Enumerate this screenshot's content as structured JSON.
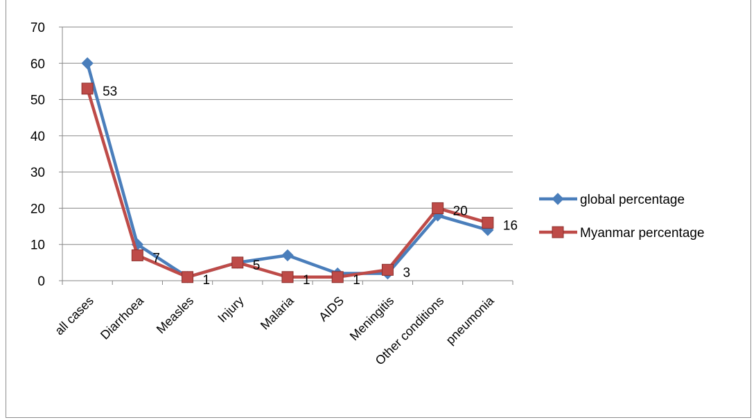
{
  "chart_data": {
    "type": "line",
    "title": "",
    "xlabel": "",
    "ylabel": "",
    "categories": [
      "all cases",
      "Diarrhoea",
      "Measles",
      "Injury",
      "Malaria",
      "AIDS",
      "Meningitis",
      "Other conditions",
      "pneumonia"
    ],
    "ylim": [
      0,
      70
    ],
    "yticks": [
      "0",
      "10",
      "20",
      "30",
      "40",
      "50",
      "60",
      "70"
    ],
    "grid": true,
    "legend_position": "right",
    "series": [
      {
        "name": "global percentage",
        "color": "#4a7ebb",
        "marker": "diamond",
        "values": [
          60,
          10,
          1,
          5,
          7,
          2,
          2,
          18,
          14
        ]
      },
      {
        "name": "Myanmar percentage",
        "color": "#be4b48",
        "marker": "square",
        "values": [
          53,
          7,
          1,
          5,
          1,
          1,
          3,
          20,
          16
        ],
        "data_labels": [
          "53",
          "7",
          "1",
          "5",
          "1",
          "1",
          "3",
          "20",
          "16"
        ]
      }
    ]
  }
}
